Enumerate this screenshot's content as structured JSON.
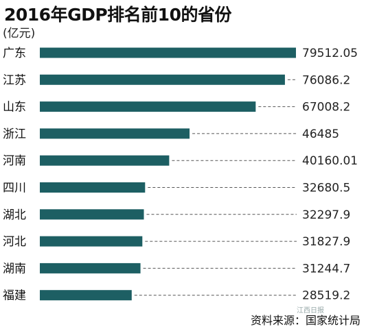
{
  "title": "2016年GDP排名前10的省份",
  "unit_label": "(亿元)",
  "source": "资料来源：国家统计局",
  "watermark": "江西日报",
  "colors": {
    "bar": "#1d5f63",
    "leader": "#555555"
  },
  "chart_data": {
    "type": "bar",
    "orientation": "horizontal",
    "title": "2016年GDP排名前10的省份",
    "unit": "(亿元)",
    "categories": [
      "广东",
      "江苏",
      "山东",
      "浙江",
      "河南",
      "四川",
      "湖北",
      "河北",
      "湖南",
      "福建"
    ],
    "values": [
      79512.05,
      76086.2,
      67008.2,
      46485,
      40160.01,
      32680.5,
      32297.9,
      31827.9,
      31244.7,
      28519.2
    ],
    "value_labels": [
      "79512.05",
      "76086.2",
      "67008.2",
      "46485",
      "40160.01",
      "32680.5",
      "32297.9",
      "31827.9",
      "31244.7",
      "28519.2"
    ],
    "xlim": [
      0,
      79512.05
    ],
    "grid": false,
    "legend": "none"
  }
}
